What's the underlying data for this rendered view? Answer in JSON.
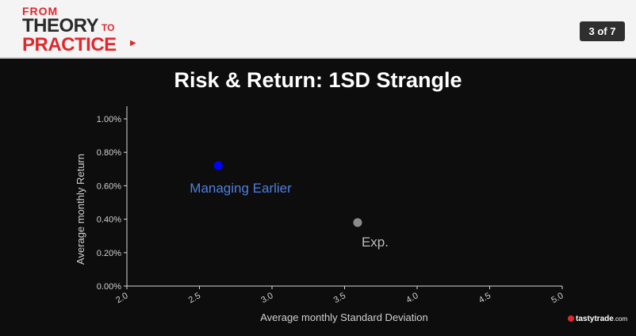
{
  "header": {
    "logo_from": "FROM",
    "logo_theory": "THEORY",
    "logo_to": "TO",
    "logo_practice": "PRACTICE",
    "page_indicator": "3 of 7"
  },
  "footer": {
    "brand": "tastytrade",
    "brand_suffix": ".com"
  },
  "chart_data": {
    "type": "scatter",
    "title": "Risk & Return: 1SD Strangle",
    "xlabel": "Average monthly Standard Deviation",
    "ylabel": "Average monthly Return",
    "xlim": [
      2.0,
      5.0
    ],
    "ylim": [
      0.0,
      1.0
    ],
    "x_ticks": [
      "2.0",
      "2.5",
      "3.0",
      "3.5",
      "4.0",
      "4.5",
      "5.0"
    ],
    "y_ticks": [
      "0.00%",
      "0.20%",
      "0.40%",
      "0.60%",
      "0.80%",
      "1.00%"
    ],
    "grid": false,
    "points": [
      {
        "label": "Managing Earlier",
        "x": 2.63,
        "y": 0.72,
        "color": "#0000ff",
        "label_color": "#4f7fe0"
      },
      {
        "label": "Exp.",
        "x": 3.59,
        "y": 0.38,
        "color": "#8c8c8c",
        "label_color": "#bcbcbc"
      }
    ]
  }
}
